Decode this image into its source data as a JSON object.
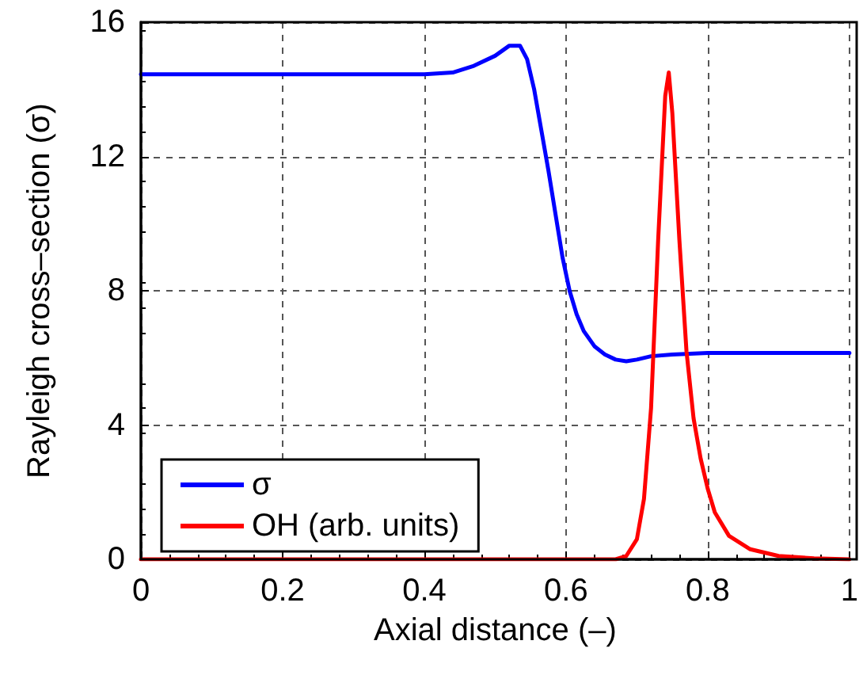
{
  "chart_data": {
    "type": "line",
    "xlabel": "Axial distance (–)",
    "ylabel": "Rayleigh cross–section (σ)",
    "xlim": [
      0,
      1
    ],
    "xticks": [
      0,
      0.2,
      0.4,
      0.6,
      0.8,
      1
    ],
    "ylim": [
      0,
      16
    ],
    "yticks": [
      0,
      4,
      8,
      12,
      16
    ],
    "grid": true,
    "legend": "bottom left",
    "line_style": "solid",
    "marker": "none",
    "series": [
      {
        "name": "σ",
        "color": "#0000ff",
        "x": [
          0,
          0.1,
          0.2,
          0.3,
          0.4,
          0.44,
          0.47,
          0.5,
          0.52,
          0.535,
          0.545,
          0.555,
          0.565,
          0.575,
          0.585,
          0.595,
          0.605,
          0.615,
          0.625,
          0.64,
          0.655,
          0.67,
          0.685,
          0.7,
          0.72,
          0.75,
          0.8,
          0.9,
          1
        ],
        "values": [
          14.45,
          14.45,
          14.45,
          14.45,
          14.45,
          14.5,
          14.7,
          15.0,
          15.3,
          15.3,
          14.9,
          14.0,
          12.8,
          11.6,
          10.3,
          9.0,
          8.0,
          7.3,
          6.8,
          6.35,
          6.1,
          5.95,
          5.9,
          5.95,
          6.05,
          6.1,
          6.15,
          6.15,
          6.15
        ]
      },
      {
        "name": "OH (arb. units)",
        "color": "#ff0000",
        "x": [
          0,
          0.3,
          0.6,
          0.67,
          0.685,
          0.7,
          0.71,
          0.72,
          0.73,
          0.74,
          0.745,
          0.75,
          0.76,
          0.77,
          0.78,
          0.79,
          0.8,
          0.81,
          0.83,
          0.86,
          0.9,
          0.95,
          1
        ],
        "values": [
          0,
          0,
          0,
          0,
          0.1,
          0.6,
          1.8,
          4.5,
          9.5,
          13.8,
          14.5,
          13.3,
          9.5,
          6.2,
          4.2,
          3.0,
          2.1,
          1.4,
          0.7,
          0.3,
          0.1,
          0.03,
          0
        ]
      }
    ]
  }
}
